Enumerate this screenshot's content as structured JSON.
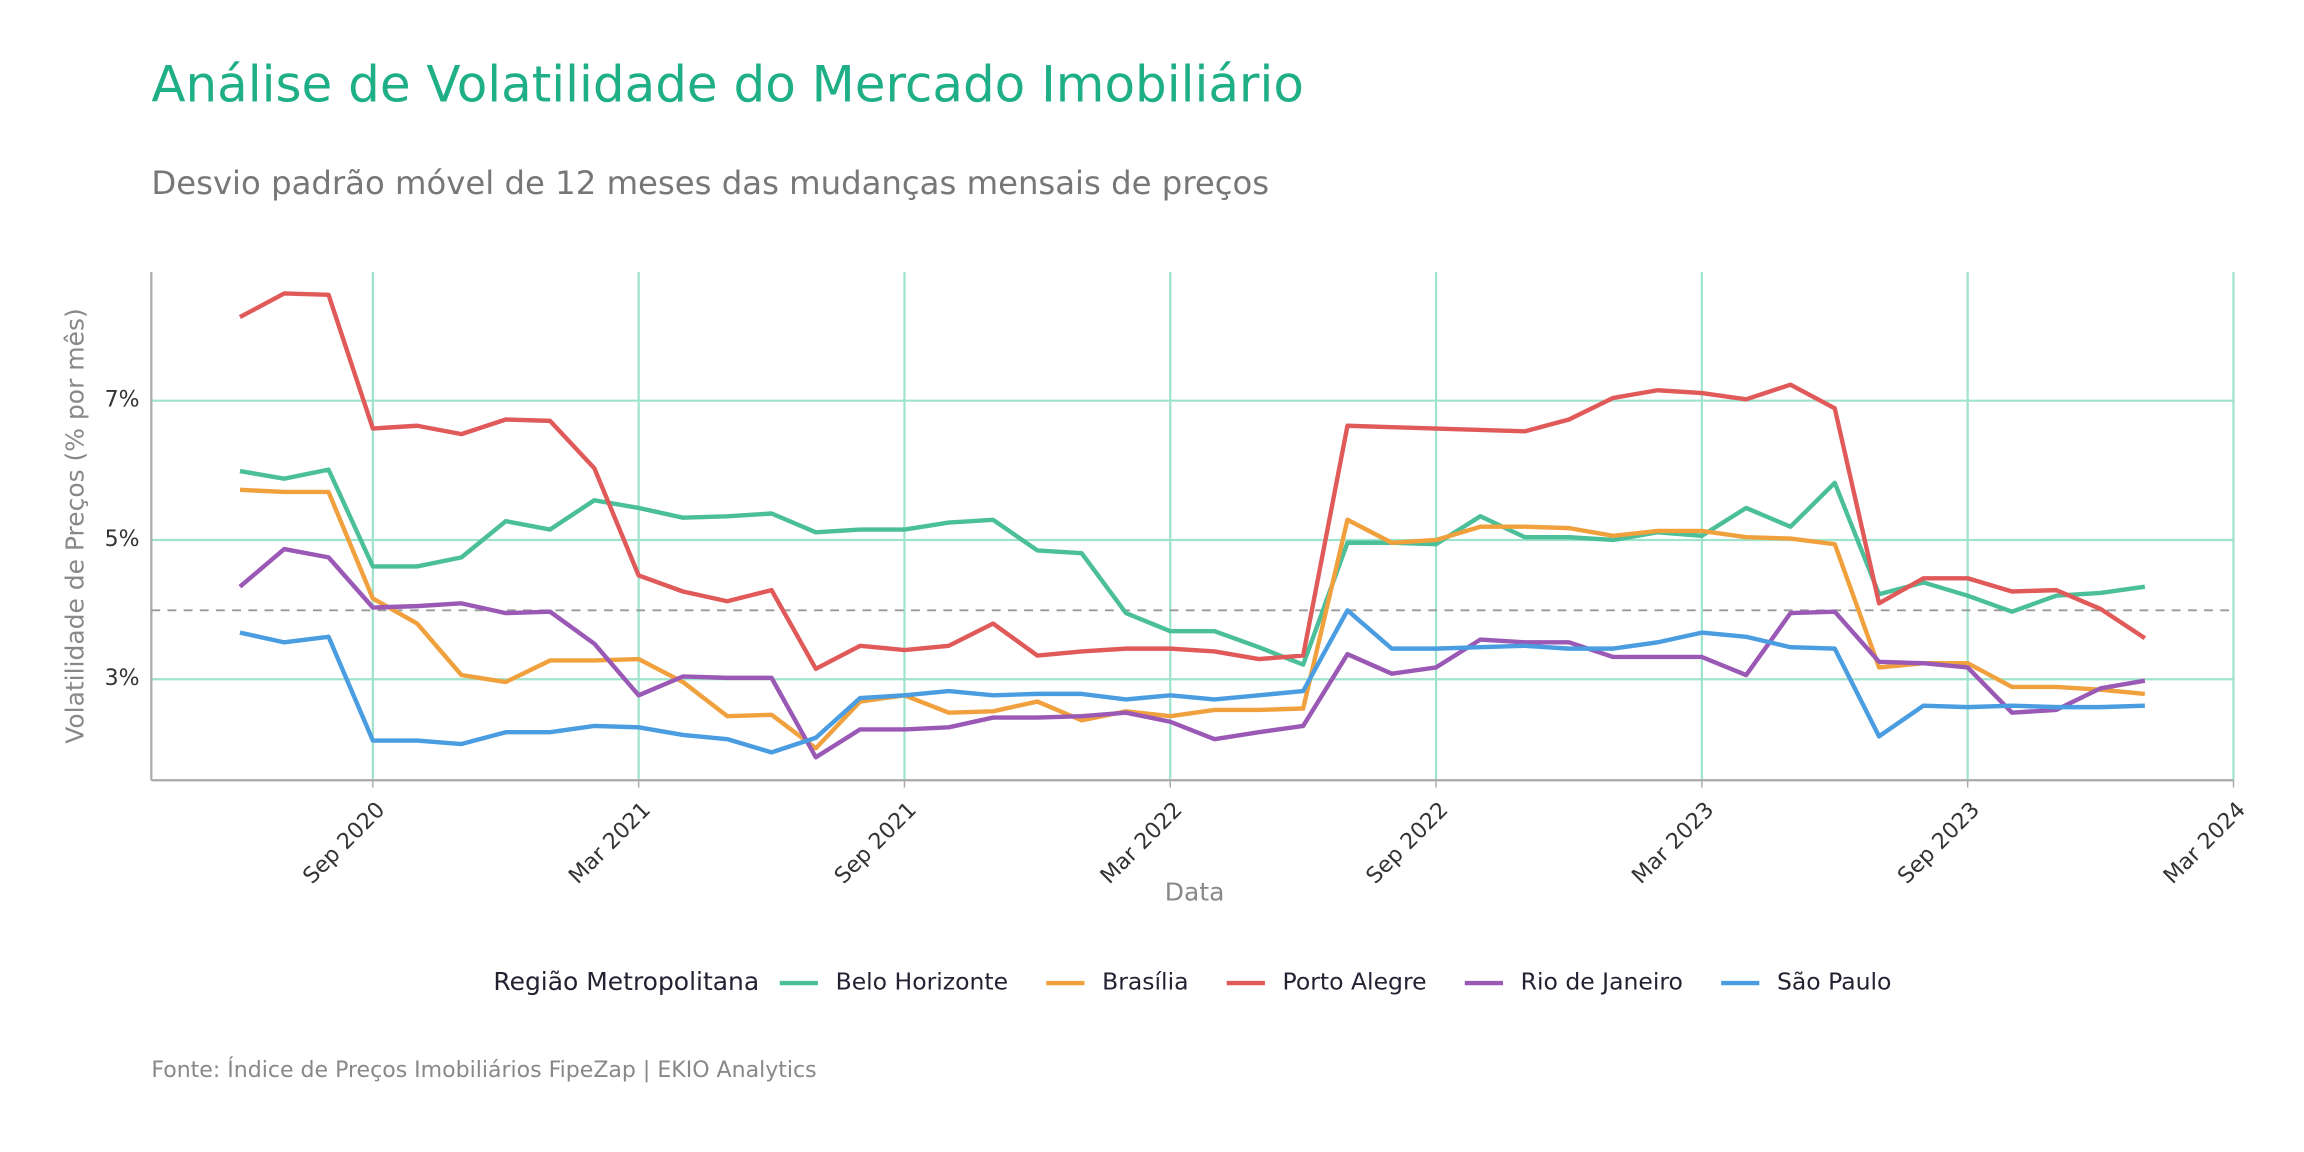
{
  "chart_data": {
    "type": "line",
    "title": "Análise de Volatilidade do Mercado Imobiliário",
    "subtitle": "Desvio padrão móvel de 12 meses das mudanças mensais de preços",
    "x_label": "Data",
    "y_label": "Volatilidade de Preços (% por mês)",
    "caption": "Fonte: Índice de Preços Imobiliários FipeZap | EKIO Analytics",
    "legend_title": "Região Metropolitana",
    "legend": "bottom",
    "grid": true,
    "reference_line": 3.99,
    "x": [
      "2020-06",
      "2020-07",
      "2020-08",
      "2020-09",
      "2020-10",
      "2020-11",
      "2020-12",
      "2021-01",
      "2021-02",
      "2021-03",
      "2021-04",
      "2021-05",
      "2021-06",
      "2021-07",
      "2021-08",
      "2021-09",
      "2021-10",
      "2021-11",
      "2021-12",
      "2022-01",
      "2022-02",
      "2022-03",
      "2022-04",
      "2022-05",
      "2022-06",
      "2022-07",
      "2022-08",
      "2022-09",
      "2022-10",
      "2022-11",
      "2022-12",
      "2023-01",
      "2023-02",
      "2023-03",
      "2023-04",
      "2023-05",
      "2023-06",
      "2023-07",
      "2023-08",
      "2023-09",
      "2023-10",
      "2023-11",
      "2023-12",
      "2024-01"
    ],
    "xlim": [
      "2020-04",
      "2024-03"
    ],
    "xticks": [
      {
        "value": "2020-09",
        "label": "Sep 2020"
      },
      {
        "value": "2021-03",
        "label": "Mar 2021"
      },
      {
        "value": "2021-09",
        "label": "Sep 2021"
      },
      {
        "value": "2022-03",
        "label": "Mar 2022"
      },
      {
        "value": "2022-09",
        "label": "Sep 2022"
      },
      {
        "value": "2023-03",
        "label": "Mar 2023"
      },
      {
        "value": "2023-09",
        "label": "Sep 2023"
      },
      {
        "value": "2024-03",
        "label": "Mar 2024"
      }
    ],
    "ylim": [
      1.55,
      8.85
    ],
    "yticks": [
      {
        "value": 3,
        "label": "3%"
      },
      {
        "value": 5,
        "label": "5%"
      },
      {
        "value": 7,
        "label": "7%"
      }
    ],
    "series": [
      {
        "name": "Belo Horizonte",
        "color": "#4bbf9a",
        "values": [
          5.99,
          5.88,
          6.01,
          4.62,
          4.62,
          4.75,
          5.27,
          5.15,
          5.57,
          5.46,
          5.32,
          5.34,
          5.38,
          5.11,
          5.15,
          5.15,
          5.25,
          5.29,
          4.85,
          4.81,
          3.95,
          3.69,
          3.69,
          3.46,
          3.21,
          4.96,
          4.96,
          4.94,
          5.34,
          5.04,
          5.04,
          5.0,
          5.11,
          5.06,
          5.46,
          5.19,
          5.82,
          4.22,
          4.39,
          4.2,
          3.97,
          4.2,
          4.24,
          4.33
        ]
      },
      {
        "name": "Brasília",
        "color": "#f0a13e",
        "values": [
          5.72,
          5.69,
          5.69,
          4.16,
          3.8,
          3.06,
          2.96,
          3.27,
          3.27,
          3.29,
          2.96,
          2.47,
          2.49,
          2.01,
          2.68,
          2.77,
          2.52,
          2.54,
          2.68,
          2.41,
          2.54,
          2.47,
          2.56,
          2.56,
          2.58,
          5.29,
          4.96,
          5.0,
          5.19,
          5.19,
          5.17,
          5.06,
          5.13,
          5.13,
          5.04,
          5.02,
          4.94,
          3.17,
          3.23,
          3.23,
          2.89,
          2.89,
          2.85,
          2.79
        ]
      },
      {
        "name": "Porto Alegre",
        "color": "#e05a5a",
        "values": [
          8.2,
          8.54,
          8.52,
          6.6,
          6.64,
          6.52,
          6.73,
          6.71,
          6.03,
          4.49,
          4.26,
          4.12,
          4.28,
          3.15,
          3.48,
          3.42,
          3.48,
          3.8,
          3.34,
          3.4,
          3.44,
          3.44,
          3.4,
          3.29,
          3.34,
          6.64,
          6.62,
          6.6,
          6.58,
          6.56,
          6.73,
          7.04,
          7.15,
          7.11,
          7.02,
          7.23,
          6.89,
          4.09,
          4.45,
          4.45,
          4.26,
          4.28,
          4.01,
          3.59
        ]
      },
      {
        "name": "Rio de Janeiro",
        "color": "#9b59b6",
        "values": [
          4.33,
          4.87,
          4.75,
          4.03,
          4.05,
          4.09,
          3.95,
          3.97,
          3.51,
          2.77,
          3.04,
          3.02,
          3.02,
          1.88,
          2.28,
          2.28,
          2.31,
          2.45,
          2.45,
          2.47,
          2.52,
          2.39,
          2.14,
          2.24,
          2.33,
          3.36,
          3.08,
          3.17,
          3.57,
          3.53,
          3.53,
          3.32,
          3.32,
          3.32,
          3.06,
          3.95,
          3.97,
          3.25,
          3.23,
          3.17,
          2.52,
          2.56,
          2.87,
          2.98
        ]
      },
      {
        "name": "São Paulo",
        "color": "#4a9de0",
        "values": [
          3.67,
          3.53,
          3.61,
          2.12,
          2.12,
          2.07,
          2.24,
          2.24,
          2.33,
          2.31,
          2.2,
          2.14,
          1.95,
          2.16,
          2.73,
          2.77,
          2.83,
          2.77,
          2.79,
          2.79,
          2.71,
          2.77,
          2.71,
          2.77,
          2.83,
          3.99,
          3.44,
          3.44,
          3.46,
          3.48,
          3.44,
          3.44,
          3.53,
          3.67,
          3.61,
          3.46,
          3.44,
          2.18,
          2.62,
          2.6,
          2.62,
          2.6,
          2.6,
          2.62
        ]
      }
    ]
  }
}
